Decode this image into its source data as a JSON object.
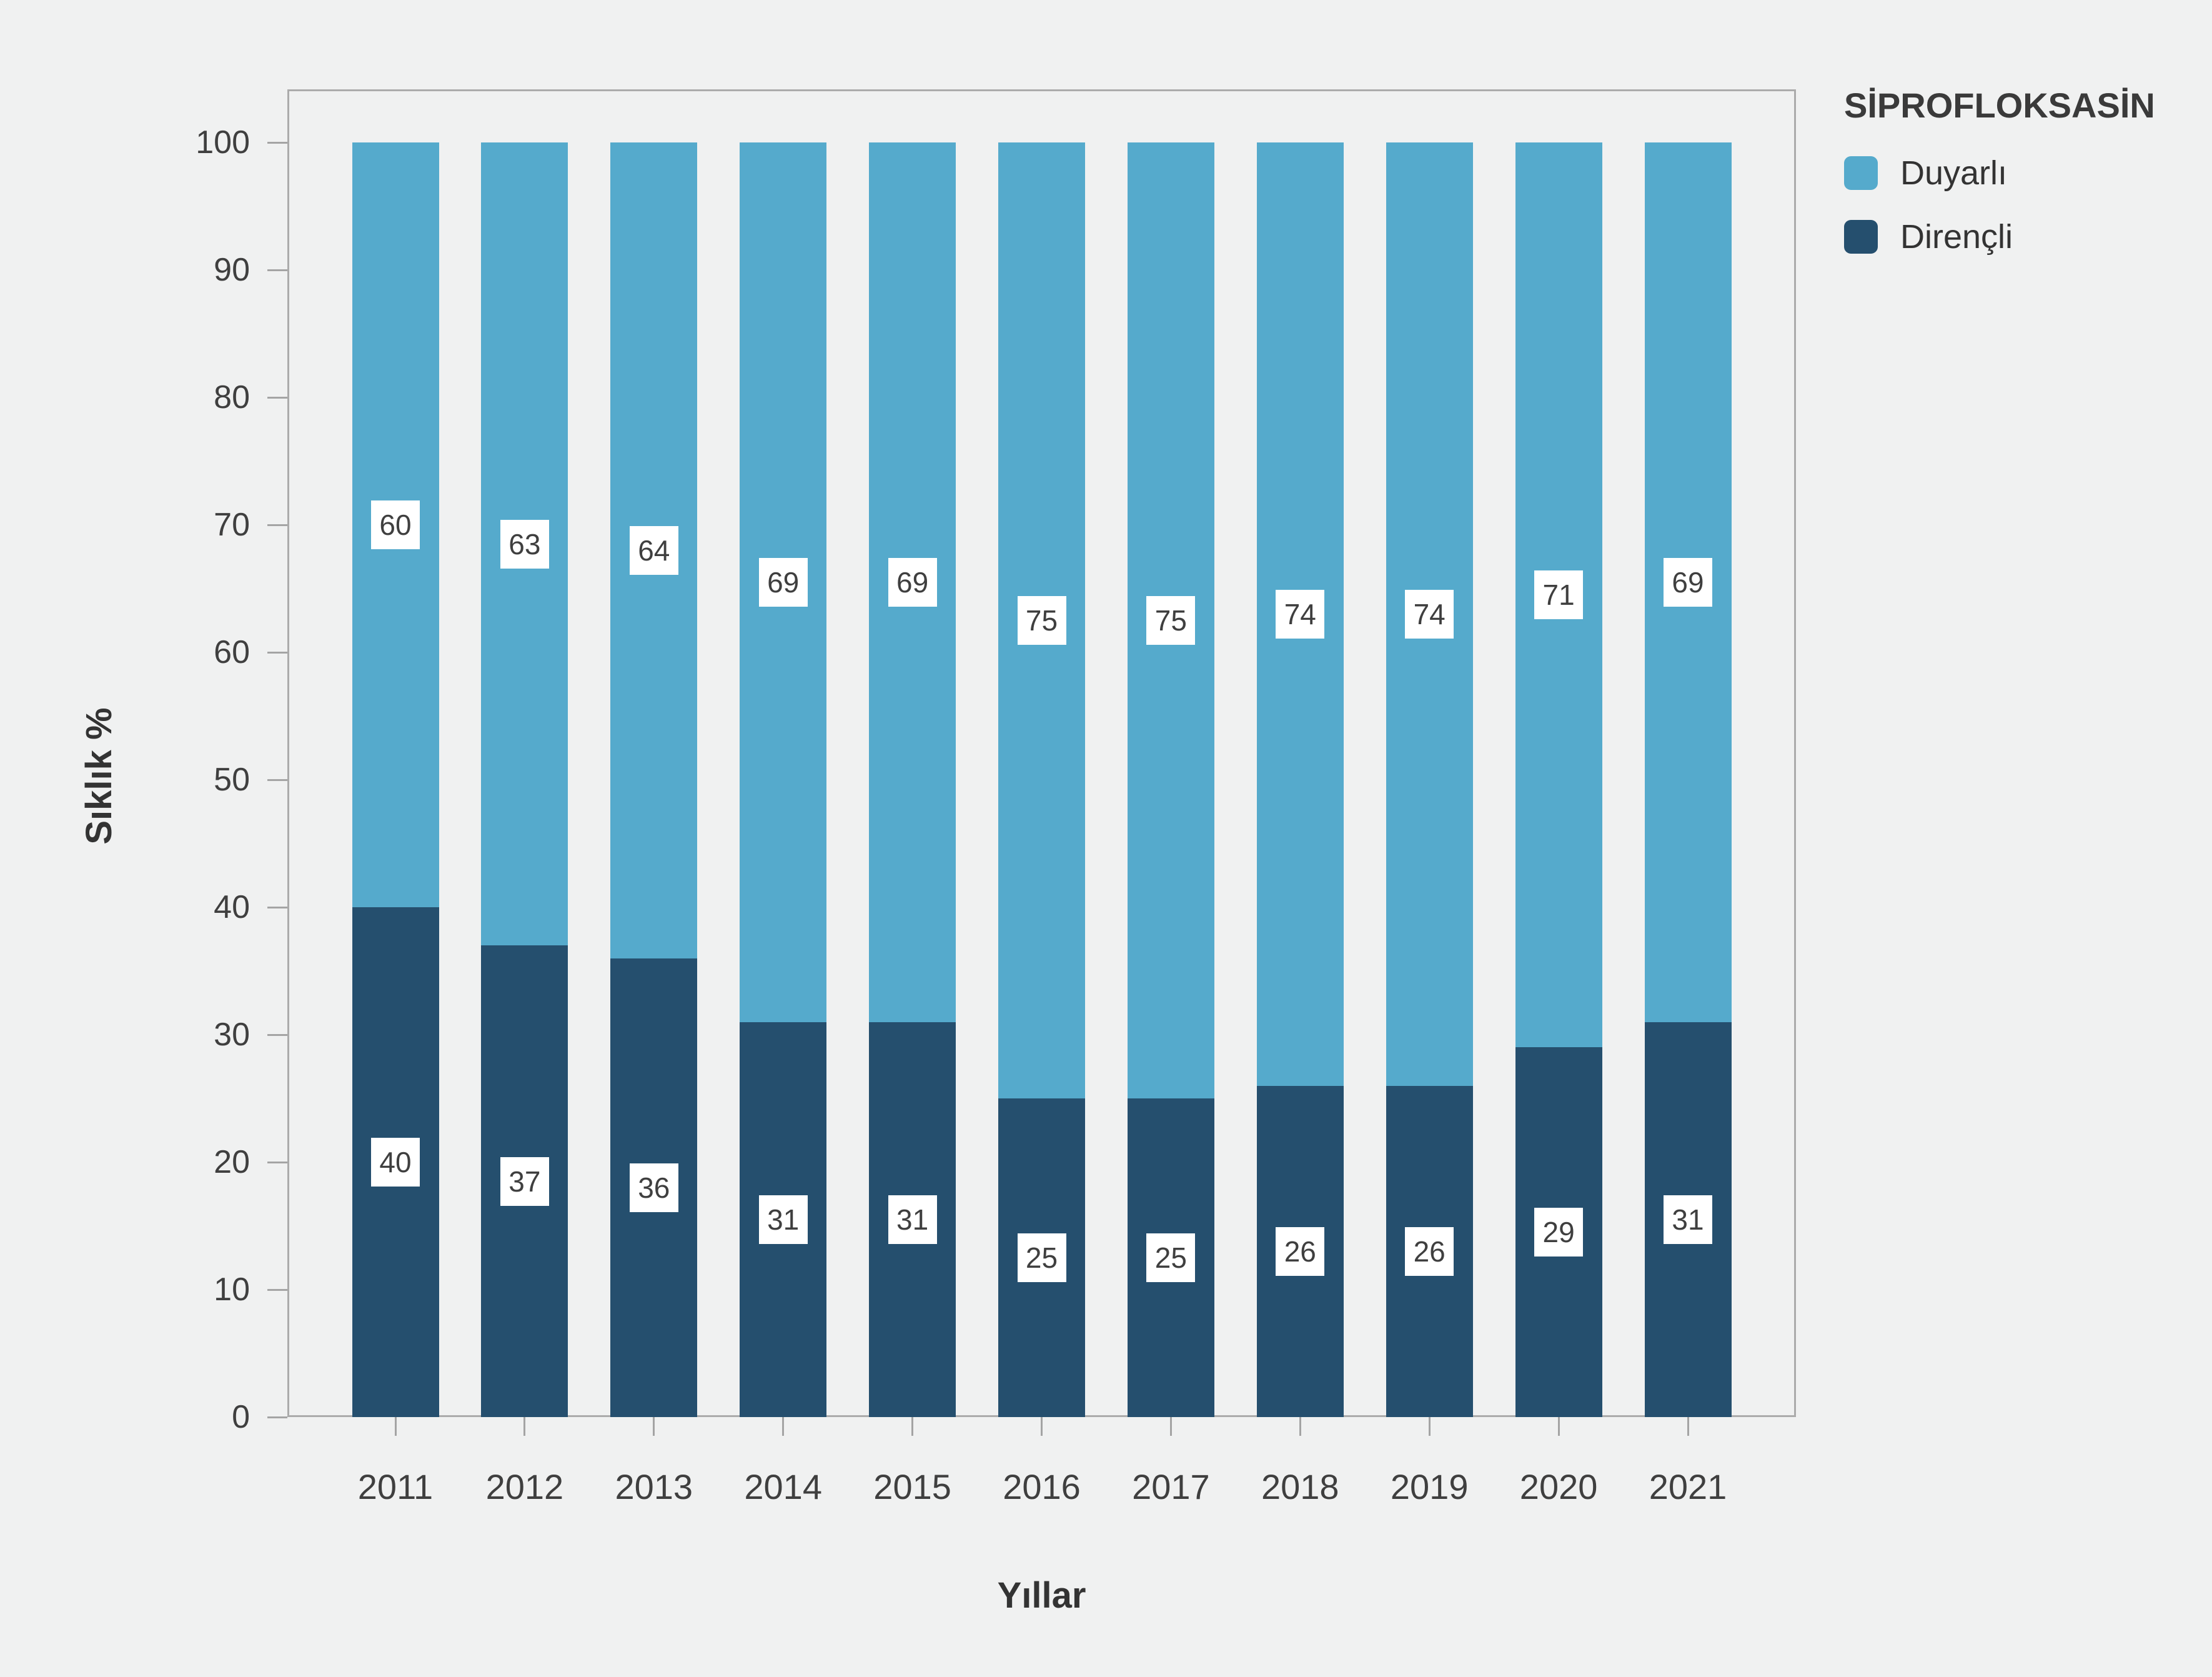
{
  "chart_data": {
    "type": "bar",
    "stacked": true,
    "orientation": "vertical",
    "categories": [
      "2011",
      "2012",
      "2013",
      "2014",
      "2015",
      "2016",
      "2017",
      "2018",
      "2019",
      "2020",
      "2021"
    ],
    "series": [
      {
        "name": "Duyarlı",
        "color": "#55AACC",
        "position": "top",
        "values": [
          60,
          63,
          64,
          69,
          69,
          75,
          75,
          74,
          74,
          71,
          69
        ]
      },
      {
        "name": "Dirençli",
        "color": "#254F6E",
        "position": "bottom",
        "values": [
          40,
          37,
          36,
          31,
          31,
          25,
          25,
          26,
          26,
          29,
          31
        ]
      }
    ],
    "legend_title": "SİPROFLOKSASİN",
    "legend_position": "top-right",
    "xlabel": "Yıllar",
    "ylabel": "Sıklık %",
    "ylim": [
      0,
      100
    ],
    "yticks": [
      0,
      10,
      20,
      30,
      40,
      50,
      60,
      70,
      80,
      90,
      100
    ],
    "grid": false,
    "data_label_style": "white-box",
    "background_color": "#F0F1F1",
    "frame_color": "#ABABAB"
  },
  "legend": {
    "title": "SİPROFLOKSASİN",
    "items": [
      {
        "label": "Duyarlı"
      },
      {
        "label": "Dirençli"
      }
    ]
  },
  "axes": {
    "y_title": "Sıklık %",
    "x_title": "Yıllar"
  }
}
